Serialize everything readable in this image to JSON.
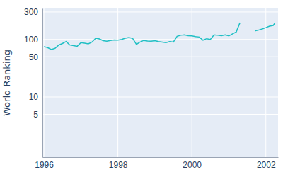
{
  "chart_data": {
    "type": "line",
    "y_label": "World Ranking",
    "color": "#1fbfc4",
    "log": "y",
    "grid": true,
    "x": [
      1996.0,
      1996.1,
      1996.2,
      1996.3,
      1996.4,
      1996.5,
      1996.6,
      1996.7,
      1996.8,
      1996.9,
      1997.0,
      1997.1,
      1997.2,
      1997.3,
      1997.4,
      1997.5,
      1997.6,
      1997.7,
      1997.8,
      1997.9,
      1998.0,
      1998.1,
      1998.2,
      1998.3,
      1998.4,
      1998.5,
      1998.6,
      1998.7,
      1998.8,
      1998.9,
      1999.0,
      1999.1,
      1999.2,
      1999.3,
      1999.4,
      1999.5,
      1999.6,
      1999.7,
      1999.8,
      1999.9,
      2000.0,
      2000.1,
      2000.2,
      2000.3,
      2000.4,
      2000.5,
      2000.6,
      2000.7,
      2000.8,
      2000.9,
      2001.0,
      2001.1,
      2001.2,
      2001.3,
      2001.4,
      2001.7,
      2001.8,
      2001.9,
      2002.0,
      2002.1,
      2002.2,
      2002.25
    ],
    "values": [
      75,
      72,
      67,
      70,
      80,
      85,
      92,
      80,
      78,
      76,
      88,
      86,
      84,
      90,
      105,
      102,
      95,
      93,
      96,
      98,
      97,
      100,
      105,
      108,
      104,
      82,
      90,
      96,
      94,
      93,
      95,
      92,
      90,
      88,
      92,
      90,
      113,
      118,
      120,
      116,
      115,
      112,
      110,
      97,
      103,
      100,
      120,
      118,
      116,
      120,
      115,
      125,
      135,
      195,
      null,
      140,
      145,
      152,
      160,
      170,
      175,
      195
    ],
    "xlim": [
      1995.96,
      2002.33
    ],
    "xticks": [
      1996,
      1998,
      2000,
      2002
    ],
    "ylim": [
      0.9,
      345
    ],
    "yticks": [
      5,
      10,
      50,
      100,
      300
    ]
  }
}
